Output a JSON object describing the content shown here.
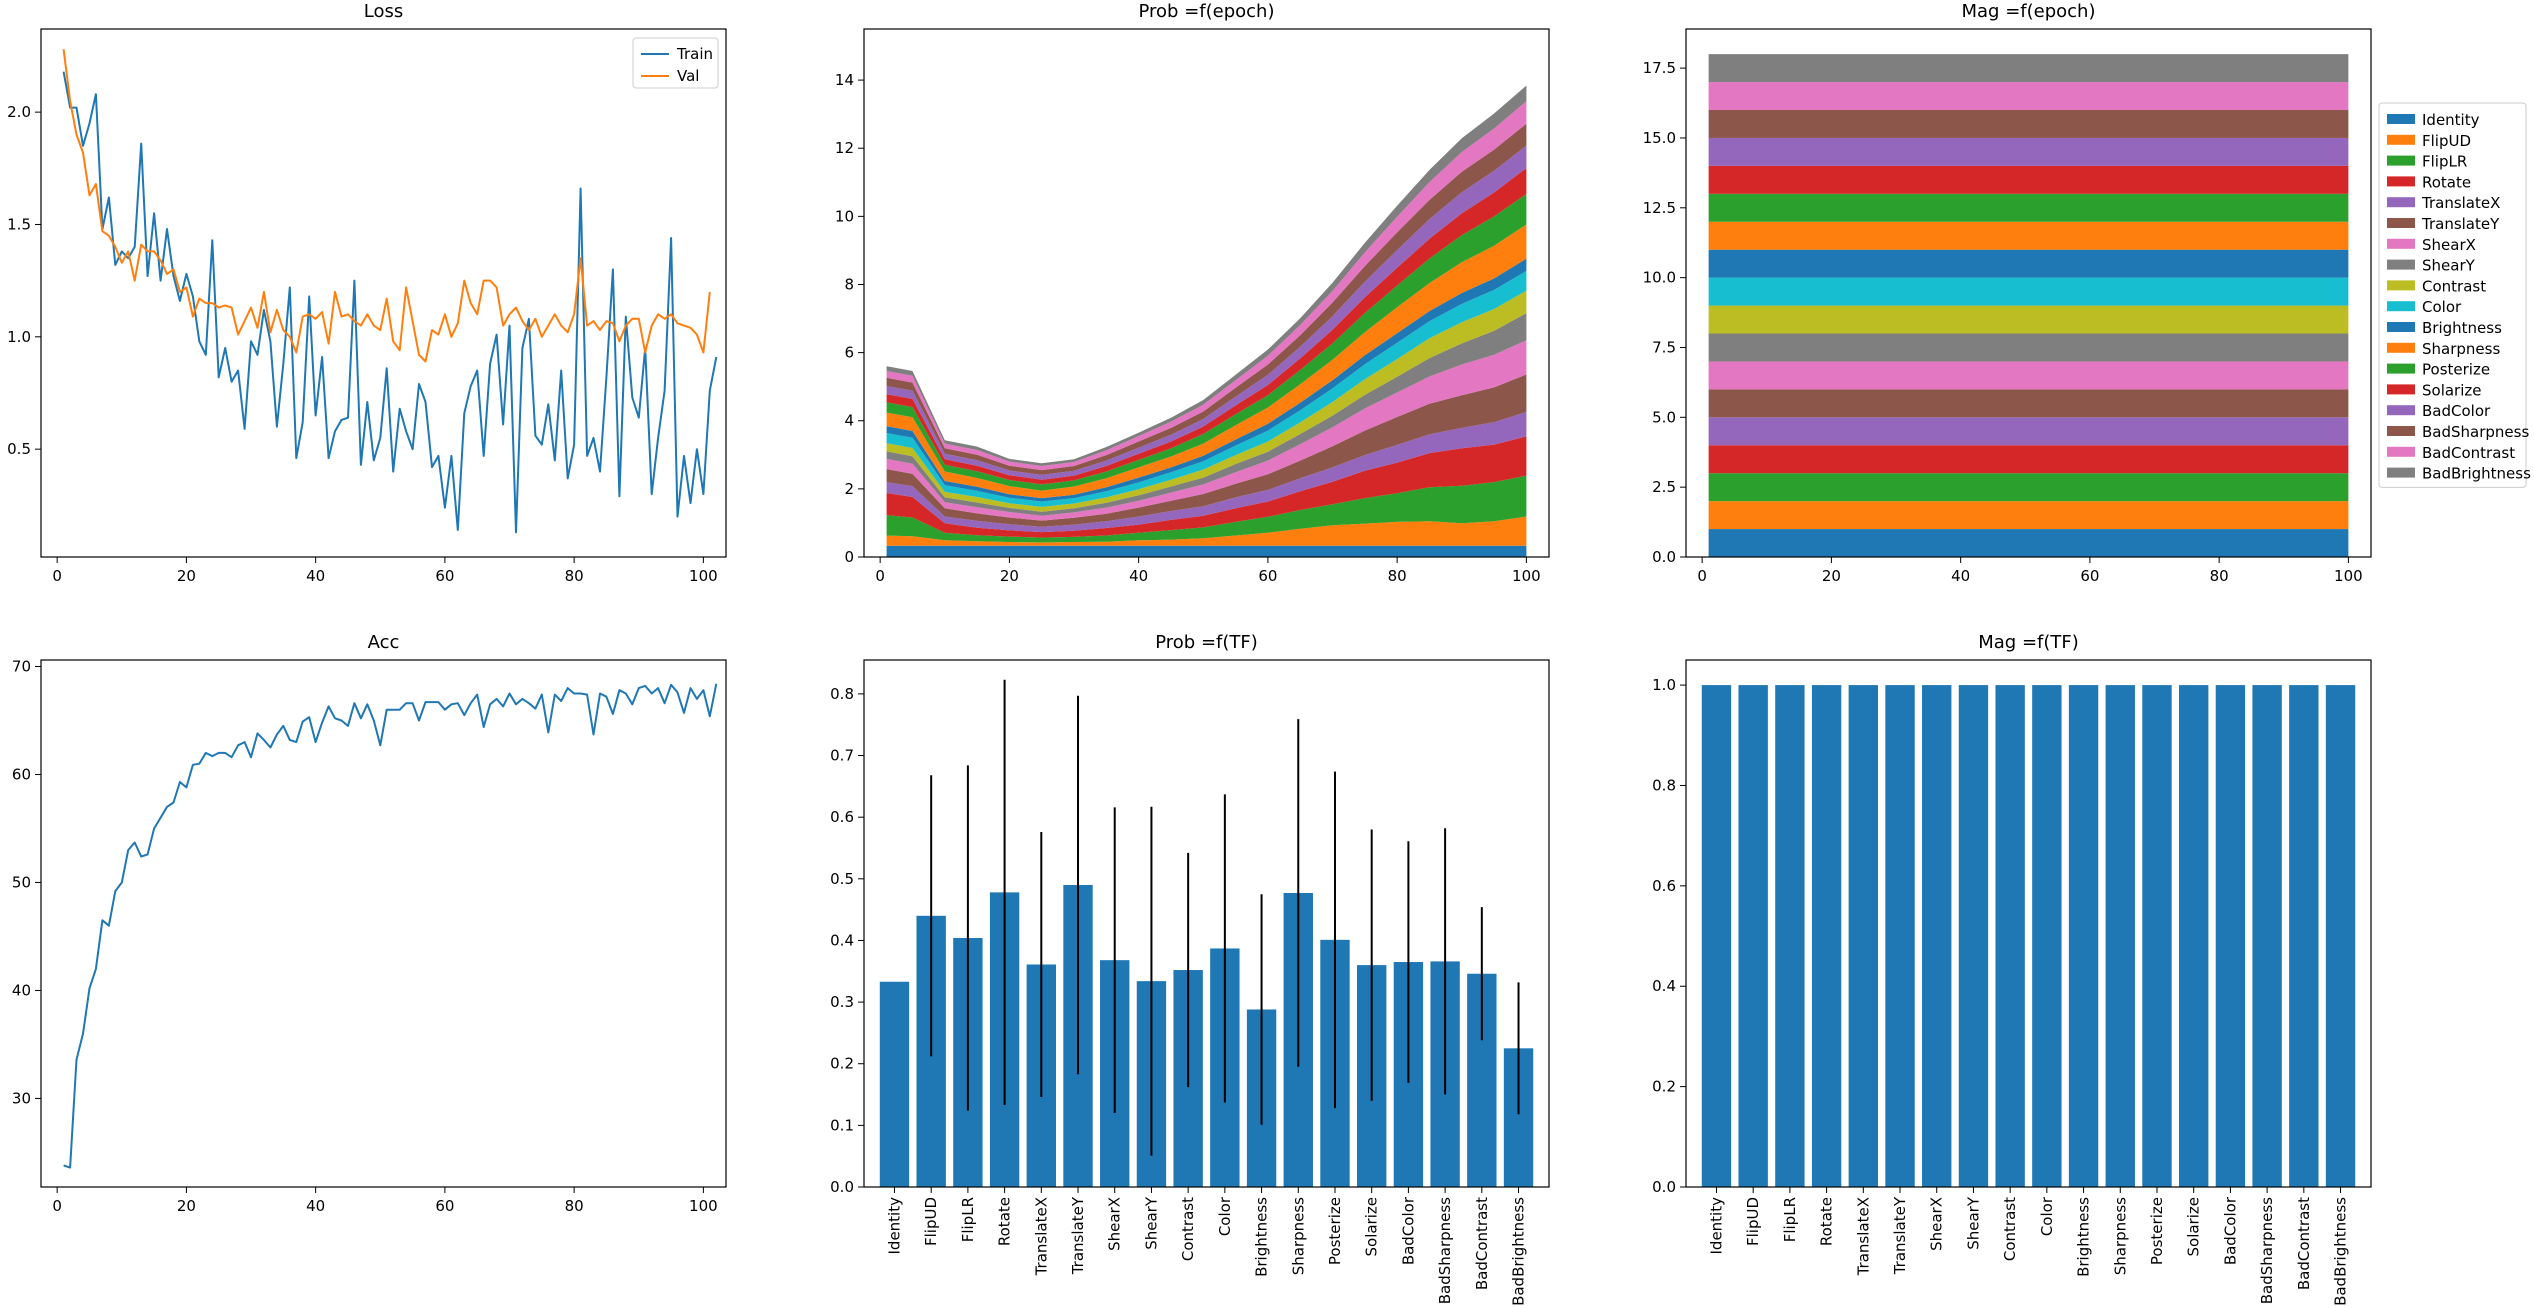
{
  "colors": {
    "tab10": [
      "#1f77b4",
      "#ff7f0e",
      "#2ca02c",
      "#d62728",
      "#9467bd",
      "#8c564b",
      "#e377c2",
      "#7f7f7f",
      "#bcbd22",
      "#17becf"
    ],
    "bar": "#1f77b4",
    "errorbar": "#000000"
  },
  "transforms": [
    "Identity",
    "FlipUD",
    "FlipLR",
    "Rotate",
    "TranslateX",
    "TranslateY",
    "ShearX",
    "ShearY",
    "Contrast",
    "Color",
    "Brightness",
    "Sharpness",
    "Posterize",
    "Solarize",
    "BadColor",
    "BadSharpness",
    "BadContrast",
    "BadBrightness"
  ],
  "chart_data": [
    {
      "id": "loss",
      "type": "line",
      "title": "Loss",
      "xlim": [
        -2.5,
        103.5
      ],
      "ylim": [
        0.02,
        2.37
      ],
      "xticks": [
        0,
        20,
        40,
        60,
        80,
        100
      ],
      "yticks": [
        0.5,
        1.0,
        1.5,
        2.0
      ],
      "ytick_labels": [
        "0.5",
        "1.0",
        "1.5",
        "2.0"
      ],
      "legend": "upper right",
      "x_start": 1,
      "series": [
        {
          "name": "Train",
          "color": "#1f77b4",
          "values": [
            2.18,
            2.02,
            2.02,
            1.85,
            1.95,
            2.08,
            1.48,
            1.62,
            1.32,
            1.38,
            1.35,
            1.4,
            1.86,
            1.27,
            1.55,
            1.25,
            1.48,
            1.27,
            1.16,
            1.28,
            1.18,
            0.98,
            0.92,
            1.43,
            0.82,
            0.95,
            0.8,
            0.85,
            0.59,
            0.98,
            0.92,
            1.12,
            0.98,
            0.6,
            0.88,
            1.22,
            0.46,
            0.62,
            1.18,
            0.65,
            0.91,
            0.46,
            0.58,
            0.63,
            0.64,
            1.25,
            0.43,
            0.71,
            0.45,
            0.55,
            0.86,
            0.4,
            0.68,
            0.58,
            0.5,
            0.79,
            0.71,
            0.42,
            0.47,
            0.24,
            0.47,
            0.14,
            0.66,
            0.78,
            0.85,
            0.47,
            0.88,
            1.01,
            0.61,
            1.05,
            0.13,
            0.95,
            1.08,
            0.56,
            0.52,
            0.7,
            0.45,
            0.85,
            0.37,
            0.52,
            1.66,
            0.47,
            0.55,
            0.4,
            0.82,
            1.3,
            0.29,
            1.09,
            0.73,
            0.64,
            0.95,
            0.3,
            0.55,
            0.76,
            1.44,
            0.2,
            0.47,
            0.26,
            0.5,
            0.3,
            0.76,
            0.91
          ],
          "x_offset": 0
        },
        {
          "name": "Val",
          "color": "#ff7f0e",
          "values": [
            2.28,
            2.05,
            1.9,
            1.82,
            1.63,
            1.68,
            1.47,
            1.45,
            1.4,
            1.33,
            1.38,
            1.25,
            1.41,
            1.38,
            1.38,
            1.34,
            1.28,
            1.3,
            1.2,
            1.22,
            1.09,
            1.17,
            1.15,
            1.15,
            1.13,
            1.14,
            1.13,
            1.01,
            1.07,
            1.13,
            1.04,
            1.2,
            1.02,
            1.12,
            1.03,
            1.0,
            0.93,
            1.09,
            1.1,
            1.08,
            1.11,
            0.97,
            1.2,
            1.09,
            1.1,
            1.07,
            1.05,
            1.1,
            1.05,
            1.03,
            1.17,
            0.98,
            0.94,
            1.22,
            1.07,
            0.92,
            0.89,
            1.03,
            1.01,
            1.1,
            1.0,
            1.06,
            1.25,
            1.15,
            1.1,
            1.25,
            1.25,
            1.22,
            1.05,
            1.1,
            1.13,
            1.07,
            1.03,
            1.08,
            1.0,
            1.05,
            1.1,
            1.05,
            1.02,
            1.1,
            1.35,
            1.05,
            1.07,
            1.03,
            1.07,
            1.06,
            0.98,
            1.05,
            1.08,
            1.08,
            0.93,
            1.05,
            1.1,
            1.08,
            1.1,
            1.06,
            1.05,
            1.04,
            1.01,
            0.93,
            1.2
          ]
        }
      ]
    },
    {
      "id": "acc",
      "type": "line",
      "title": "Acc",
      "xlim": [
        -2.5,
        103.5
      ],
      "ylim": [
        21.8,
        70.6
      ],
      "xticks": [
        0,
        20,
        40,
        60,
        80,
        100
      ],
      "yticks": [
        30,
        40,
        50,
        60,
        70
      ],
      "ytick_labels": [
        "30",
        "40",
        "50",
        "60",
        "70"
      ],
      "x_start": 1,
      "series": [
        {
          "color": "#1f77b4",
          "values": [
            23.8,
            23.6,
            33.6,
            36.0,
            40.2,
            42.0,
            46.5,
            46.0,
            49.2,
            50.0,
            53.0,
            53.7,
            52.4,
            52.6,
            55.0,
            56.0,
            57.0,
            57.4,
            59.3,
            58.8,
            60.9,
            61.0,
            62.0,
            61.7,
            62.0,
            62.0,
            61.6,
            62.7,
            63.0,
            61.6,
            63.8,
            63.2,
            62.5,
            63.7,
            64.5,
            63.2,
            63.0,
            64.9,
            65.3,
            63.0,
            64.8,
            66.3,
            65.2,
            65.0,
            64.5,
            66.6,
            65.2,
            66.5,
            65.0,
            62.7,
            66.0,
            66.0,
            66.0,
            66.6,
            66.6,
            65.0,
            66.7,
            66.7,
            66.7,
            66.0,
            66.5,
            66.6,
            65.5,
            66.6,
            67.4,
            64.4,
            66.5,
            67.0,
            66.3,
            67.5,
            66.5,
            67.0,
            66.6,
            66.1,
            67.4,
            63.9,
            67.4,
            66.8,
            68.0,
            67.5,
            67.5,
            67.4,
            63.7,
            67.5,
            67.2,
            65.6,
            67.8,
            67.5,
            66.5,
            68.0,
            68.2,
            67.5,
            68.0,
            66.6,
            68.3,
            67.6,
            65.7,
            68.0,
            67.0,
            67.8,
            65.4,
            68.4
          ]
        }
      ]
    },
    {
      "id": "prob-epoch",
      "type": "area",
      "title": "Prob =f(epoch)",
      "xlim": [
        -2.5,
        103.5
      ],
      "ylim": [
        0,
        15.5
      ],
      "xticks": [
        0,
        20,
        40,
        60,
        80,
        100
      ],
      "yticks": [
        0,
        2,
        4,
        6,
        8,
        10,
        12,
        14
      ],
      "ytick_labels": [
        "0",
        "2",
        "4",
        "6",
        "8",
        "10",
        "12",
        "14"
      ],
      "x": [
        1,
        5,
        10,
        15,
        20,
        25,
        30,
        35,
        40,
        45,
        50,
        55,
        60,
        65,
        70,
        75,
        80,
        85,
        90,
        95,
        100
      ],
      "series": [
        {
          "name": "Identity",
          "values": [
            0.33,
            0.33,
            0.33,
            0.33,
            0.33,
            0.33,
            0.33,
            0.33,
            0.33,
            0.33,
            0.33,
            0.33,
            0.33,
            0.33,
            0.33,
            0.33,
            0.33,
            0.33,
            0.33,
            0.33,
            0.33
          ]
        },
        {
          "name": "FlipUD",
          "values": [
            0.3,
            0.28,
            0.16,
            0.13,
            0.11,
            0.1,
            0.11,
            0.12,
            0.16,
            0.18,
            0.22,
            0.3,
            0.38,
            0.5,
            0.6,
            0.65,
            0.7,
            0.72,
            0.66,
            0.72,
            0.86
          ]
        },
        {
          "name": "FlipLR",
          "values": [
            0.6,
            0.55,
            0.22,
            0.18,
            0.16,
            0.14,
            0.15,
            0.18,
            0.22,
            0.28,
            0.32,
            0.4,
            0.47,
            0.55,
            0.62,
            0.75,
            0.84,
            1.0,
            1.1,
            1.15,
            1.2
          ]
        },
        {
          "name": "Rotate",
          "values": [
            0.65,
            0.6,
            0.28,
            0.22,
            0.18,
            0.16,
            0.18,
            0.22,
            0.24,
            0.3,
            0.34,
            0.4,
            0.45,
            0.55,
            0.66,
            0.8,
            0.9,
            1.0,
            1.1,
            1.1,
            1.15
          ]
        },
        {
          "name": "TranslateX",
          "values": [
            0.32,
            0.32,
            0.2,
            0.2,
            0.18,
            0.16,
            0.18,
            0.2,
            0.24,
            0.26,
            0.28,
            0.32,
            0.34,
            0.38,
            0.42,
            0.46,
            0.52,
            0.55,
            0.6,
            0.66,
            0.72
          ]
        },
        {
          "name": "TranslateY",
          "values": [
            0.38,
            0.36,
            0.24,
            0.22,
            0.2,
            0.18,
            0.2,
            0.22,
            0.26,
            0.3,
            0.36,
            0.4,
            0.46,
            0.52,
            0.62,
            0.72,
            0.82,
            0.9,
            0.96,
            1.02,
            1.1
          ]
        },
        {
          "name": "ShearX",
          "values": [
            0.3,
            0.3,
            0.18,
            0.18,
            0.16,
            0.14,
            0.16,
            0.18,
            0.2,
            0.24,
            0.28,
            0.34,
            0.4,
            0.48,
            0.56,
            0.65,
            0.72,
            0.8,
            0.9,
            0.96,
            1.0
          ]
        },
        {
          "name": "ShearY",
          "values": [
            0.22,
            0.22,
            0.14,
            0.14,
            0.12,
            0.12,
            0.12,
            0.14,
            0.16,
            0.18,
            0.2,
            0.24,
            0.26,
            0.3,
            0.34,
            0.4,
            0.46,
            0.54,
            0.62,
            0.7,
            0.8
          ]
        },
        {
          "name": "Contrast",
          "values": [
            0.24,
            0.24,
            0.16,
            0.16,
            0.14,
            0.14,
            0.14,
            0.16,
            0.18,
            0.2,
            0.24,
            0.26,
            0.3,
            0.34,
            0.4,
            0.46,
            0.52,
            0.58,
            0.62,
            0.64,
            0.66
          ]
        },
        {
          "name": "Color",
          "values": [
            0.3,
            0.3,
            0.2,
            0.18,
            0.16,
            0.16,
            0.16,
            0.18,
            0.2,
            0.22,
            0.24,
            0.28,
            0.32,
            0.36,
            0.4,
            0.44,
            0.48,
            0.5,
            0.54,
            0.56,
            0.58
          ]
        },
        {
          "name": "Brightness",
          "values": [
            0.2,
            0.2,
            0.12,
            0.12,
            0.1,
            0.1,
            0.1,
            0.12,
            0.14,
            0.14,
            0.16,
            0.18,
            0.2,
            0.22,
            0.24,
            0.26,
            0.28,
            0.3,
            0.32,
            0.34,
            0.36
          ]
        },
        {
          "name": "Sharpness",
          "values": [
            0.4,
            0.4,
            0.28,
            0.26,
            0.24,
            0.22,
            0.24,
            0.26,
            0.3,
            0.32,
            0.36,
            0.42,
            0.48,
            0.54,
            0.6,
            0.68,
            0.76,
            0.82,
            0.9,
            0.96,
            1.0
          ]
        },
        {
          "name": "Posterize",
          "values": [
            0.3,
            0.3,
            0.2,
            0.2,
            0.18,
            0.18,
            0.18,
            0.2,
            0.22,
            0.24,
            0.28,
            0.32,
            0.36,
            0.42,
            0.48,
            0.56,
            0.64,
            0.72,
            0.8,
            0.86,
            0.9
          ]
        },
        {
          "name": "Solarize",
          "values": [
            0.24,
            0.24,
            0.16,
            0.16,
            0.14,
            0.14,
            0.14,
            0.16,
            0.18,
            0.2,
            0.22,
            0.26,
            0.3,
            0.34,
            0.4,
            0.46,
            0.52,
            0.58,
            0.64,
            0.7,
            0.76
          ]
        },
        {
          "name": "BadColor",
          "values": [
            0.24,
            0.24,
            0.16,
            0.16,
            0.14,
            0.14,
            0.14,
            0.16,
            0.18,
            0.2,
            0.22,
            0.26,
            0.3,
            0.34,
            0.4,
            0.46,
            0.52,
            0.58,
            0.62,
            0.64,
            0.66
          ]
        },
        {
          "name": "BadSharpness",
          "values": [
            0.24,
            0.24,
            0.16,
            0.16,
            0.14,
            0.14,
            0.14,
            0.16,
            0.18,
            0.2,
            0.22,
            0.26,
            0.3,
            0.34,
            0.4,
            0.46,
            0.52,
            0.56,
            0.6,
            0.62,
            0.64
          ]
        },
        {
          "name": "BadContrast",
          "values": [
            0.2,
            0.2,
            0.14,
            0.14,
            0.12,
            0.12,
            0.12,
            0.14,
            0.16,
            0.18,
            0.2,
            0.22,
            0.26,
            0.3,
            0.34,
            0.4,
            0.46,
            0.52,
            0.58,
            0.62,
            0.66
          ]
        },
        {
          "name": "BadBrightness",
          "values": [
            0.14,
            0.14,
            0.1,
            0.1,
            0.08,
            0.08,
            0.08,
            0.1,
            0.1,
            0.12,
            0.14,
            0.16,
            0.18,
            0.2,
            0.24,
            0.28,
            0.32,
            0.36,
            0.4,
            0.44,
            0.46
          ]
        }
      ]
    },
    {
      "id": "mag-epoch",
      "type": "area",
      "title": "Mag =f(epoch)",
      "xlim": [
        -2.5,
        103.5
      ],
      "ylim": [
        0,
        18.9
      ],
      "xticks": [
        0,
        20,
        40,
        60,
        80,
        100
      ],
      "yticks": [
        0,
        2.5,
        5,
        7.5,
        10,
        12.5,
        15,
        17.5
      ],
      "ytick_labels": [
        "0.0",
        "2.5",
        "5.0",
        "7.5",
        "10.0",
        "12.5",
        "15.0",
        "17.5"
      ],
      "x_range": [
        1,
        100
      ],
      "layer_value": 1.0,
      "legend": "right outside",
      "series_names": [
        "Identity",
        "FlipUD",
        "FlipLR",
        "Rotate",
        "TranslateX",
        "TranslateY",
        "ShearX",
        "ShearY",
        "Contrast",
        "Color",
        "Brightness",
        "Sharpness",
        "Posterize",
        "Solarize",
        "BadColor",
        "BadSharpness",
        "BadContrast",
        "BadBrightness"
      ]
    },
    {
      "id": "prob-tf",
      "type": "bar",
      "title": "Prob =f(TF)",
      "ylim": [
        0,
        0.855
      ],
      "yticks": [
        0,
        0.1,
        0.2,
        0.3,
        0.4,
        0.5,
        0.6,
        0.7,
        0.8
      ],
      "ytick_labels": [
        "0.0",
        "0.1",
        "0.2",
        "0.3",
        "0.4",
        "0.5",
        "0.6",
        "0.7",
        "0.8"
      ],
      "values": [
        0.333,
        0.44,
        0.404,
        0.478,
        0.361,
        0.49,
        0.368,
        0.334,
        0.352,
        0.387,
        0.288,
        0.477,
        0.401,
        0.36,
        0.365,
        0.366,
        0.346,
        0.225
      ],
      "errors": [
        0.0,
        0.228,
        0.28,
        0.345,
        0.215,
        0.307,
        0.248,
        0.283,
        0.19,
        0.25,
        0.187,
        0.282,
        0.273,
        0.22,
        0.196,
        0.216,
        0.108,
        0.107
      ]
    },
    {
      "id": "mag-tf",
      "type": "bar",
      "title": "Mag =f(TF)",
      "ylim": [
        0,
        1.05
      ],
      "yticks": [
        0,
        0.2,
        0.4,
        0.6,
        0.8,
        1.0
      ],
      "ytick_labels": [
        "0.0",
        "0.2",
        "0.4",
        "0.6",
        "0.8",
        "1.0"
      ],
      "values": [
        1,
        1,
        1,
        1,
        1,
        1,
        1,
        1,
        1,
        1,
        1,
        1,
        1,
        1,
        1,
        1,
        1,
        1
      ]
    }
  ]
}
